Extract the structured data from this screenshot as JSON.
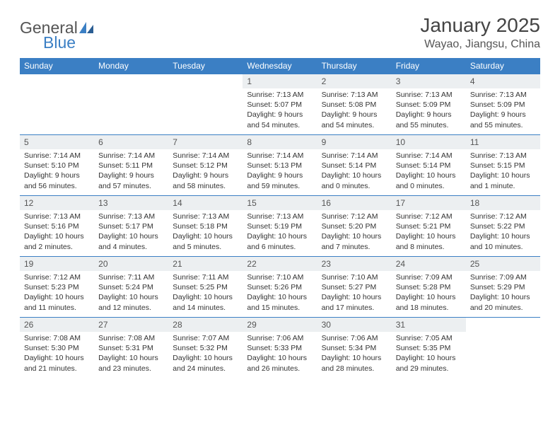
{
  "brand": {
    "part1": "General",
    "part2": "Blue"
  },
  "title": "January 2025",
  "location": "Wayao, Jiangsu, China",
  "colors": {
    "accent": "#3b7fc4",
    "header_bg": "#eceff1",
    "text": "#333333",
    "background": "#ffffff"
  },
  "type": "calendar-table",
  "columns": [
    "Sunday",
    "Monday",
    "Tuesday",
    "Wednesday",
    "Thursday",
    "Friday",
    "Saturday"
  ],
  "weeks": [
    [
      {
        "n": "",
        "sunrise": "",
        "sunset": "",
        "daylight": ""
      },
      {
        "n": "",
        "sunrise": "",
        "sunset": "",
        "daylight": ""
      },
      {
        "n": "",
        "sunrise": "",
        "sunset": "",
        "daylight": ""
      },
      {
        "n": "1",
        "sunrise": "7:13 AM",
        "sunset": "5:07 PM",
        "daylight": "9 hours and 54 minutes."
      },
      {
        "n": "2",
        "sunrise": "7:13 AM",
        "sunset": "5:08 PM",
        "daylight": "9 hours and 54 minutes."
      },
      {
        "n": "3",
        "sunrise": "7:13 AM",
        "sunset": "5:09 PM",
        "daylight": "9 hours and 55 minutes."
      },
      {
        "n": "4",
        "sunrise": "7:13 AM",
        "sunset": "5:09 PM",
        "daylight": "9 hours and 55 minutes."
      }
    ],
    [
      {
        "n": "5",
        "sunrise": "7:14 AM",
        "sunset": "5:10 PM",
        "daylight": "9 hours and 56 minutes."
      },
      {
        "n": "6",
        "sunrise": "7:14 AM",
        "sunset": "5:11 PM",
        "daylight": "9 hours and 57 minutes."
      },
      {
        "n": "7",
        "sunrise": "7:14 AM",
        "sunset": "5:12 PM",
        "daylight": "9 hours and 58 minutes."
      },
      {
        "n": "8",
        "sunrise": "7:14 AM",
        "sunset": "5:13 PM",
        "daylight": "9 hours and 59 minutes."
      },
      {
        "n": "9",
        "sunrise": "7:14 AM",
        "sunset": "5:14 PM",
        "daylight": "10 hours and 0 minutes."
      },
      {
        "n": "10",
        "sunrise": "7:14 AM",
        "sunset": "5:14 PM",
        "daylight": "10 hours and 0 minutes."
      },
      {
        "n": "11",
        "sunrise": "7:13 AM",
        "sunset": "5:15 PM",
        "daylight": "10 hours and 1 minute."
      }
    ],
    [
      {
        "n": "12",
        "sunrise": "7:13 AM",
        "sunset": "5:16 PM",
        "daylight": "10 hours and 2 minutes."
      },
      {
        "n": "13",
        "sunrise": "7:13 AM",
        "sunset": "5:17 PM",
        "daylight": "10 hours and 4 minutes."
      },
      {
        "n": "14",
        "sunrise": "7:13 AM",
        "sunset": "5:18 PM",
        "daylight": "10 hours and 5 minutes."
      },
      {
        "n": "15",
        "sunrise": "7:13 AM",
        "sunset": "5:19 PM",
        "daylight": "10 hours and 6 minutes."
      },
      {
        "n": "16",
        "sunrise": "7:12 AM",
        "sunset": "5:20 PM",
        "daylight": "10 hours and 7 minutes."
      },
      {
        "n": "17",
        "sunrise": "7:12 AM",
        "sunset": "5:21 PM",
        "daylight": "10 hours and 8 minutes."
      },
      {
        "n": "18",
        "sunrise": "7:12 AM",
        "sunset": "5:22 PM",
        "daylight": "10 hours and 10 minutes."
      }
    ],
    [
      {
        "n": "19",
        "sunrise": "7:12 AM",
        "sunset": "5:23 PM",
        "daylight": "10 hours and 11 minutes."
      },
      {
        "n": "20",
        "sunrise": "7:11 AM",
        "sunset": "5:24 PM",
        "daylight": "10 hours and 12 minutes."
      },
      {
        "n": "21",
        "sunrise": "7:11 AM",
        "sunset": "5:25 PM",
        "daylight": "10 hours and 14 minutes."
      },
      {
        "n": "22",
        "sunrise": "7:10 AM",
        "sunset": "5:26 PM",
        "daylight": "10 hours and 15 minutes."
      },
      {
        "n": "23",
        "sunrise": "7:10 AM",
        "sunset": "5:27 PM",
        "daylight": "10 hours and 17 minutes."
      },
      {
        "n": "24",
        "sunrise": "7:09 AM",
        "sunset": "5:28 PM",
        "daylight": "10 hours and 18 minutes."
      },
      {
        "n": "25",
        "sunrise": "7:09 AM",
        "sunset": "5:29 PM",
        "daylight": "10 hours and 20 minutes."
      }
    ],
    [
      {
        "n": "26",
        "sunrise": "7:08 AM",
        "sunset": "5:30 PM",
        "daylight": "10 hours and 21 minutes."
      },
      {
        "n": "27",
        "sunrise": "7:08 AM",
        "sunset": "5:31 PM",
        "daylight": "10 hours and 23 minutes."
      },
      {
        "n": "28",
        "sunrise": "7:07 AM",
        "sunset": "5:32 PM",
        "daylight": "10 hours and 24 minutes."
      },
      {
        "n": "29",
        "sunrise": "7:06 AM",
        "sunset": "5:33 PM",
        "daylight": "10 hours and 26 minutes."
      },
      {
        "n": "30",
        "sunrise": "7:06 AM",
        "sunset": "5:34 PM",
        "daylight": "10 hours and 28 minutes."
      },
      {
        "n": "31",
        "sunrise": "7:05 AM",
        "sunset": "5:35 PM",
        "daylight": "10 hours and 29 minutes."
      },
      {
        "n": "",
        "sunrise": "",
        "sunset": "",
        "daylight": ""
      }
    ]
  ],
  "labels": {
    "sunrise": "Sunrise:",
    "sunset": "Sunset:",
    "daylight": "Daylight:"
  }
}
